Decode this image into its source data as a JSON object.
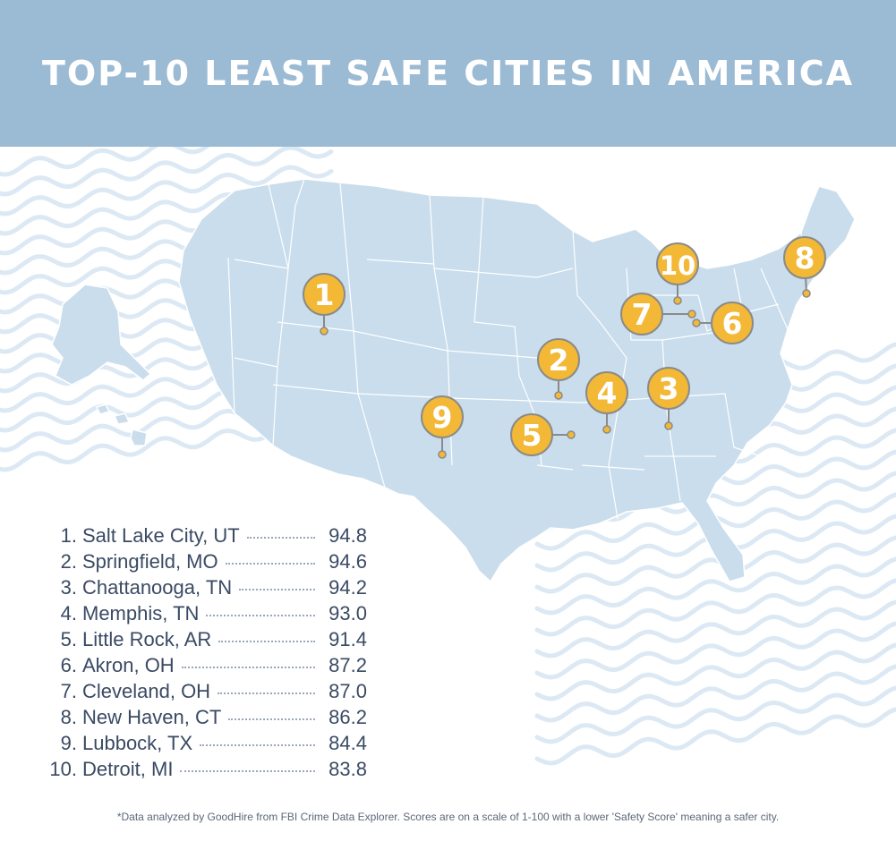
{
  "title": "TOP-10 LEAST SAFE CITIES IN AMERICA",
  "colors": {
    "banner": "#9bbad3",
    "land": "#c9ddec",
    "state_border": "#ffffff",
    "marker_fill": "#f2b836",
    "marker_stroke": "#8a8a8a",
    "waves": "#dce9f4",
    "text": "#3a4a63"
  },
  "cities": [
    {
      "rank": "1.",
      "badge": "1",
      "name": "Salt Lake City, UT",
      "score": "94.8"
    },
    {
      "rank": "2.",
      "badge": "2",
      "name": "Springfield, MO",
      "score": "94.6"
    },
    {
      "rank": "3.",
      "badge": "3",
      "name": "Chattanooga, TN",
      "score": "94.2"
    },
    {
      "rank": "4.",
      "badge": "4",
      "name": "Memphis, TN",
      "score": "93.0"
    },
    {
      "rank": "5.",
      "badge": "5",
      "name": "Little Rock, AR",
      "score": "91.4"
    },
    {
      "rank": "6.",
      "badge": "6",
      "name": "Akron, OH",
      "score": "87.2"
    },
    {
      "rank": "7.",
      "badge": "7",
      "name": "Cleveland, OH",
      "score": "87.0"
    },
    {
      "rank": "8.",
      "badge": "8",
      "name": "New Haven, CT",
      "score": "86.2"
    },
    {
      "rank": "9.",
      "badge": "9",
      "name": "Lubbock, TX",
      "score": "84.4"
    },
    {
      "rank": "10.",
      "badge": "10",
      "name": "Detroit, MI",
      "score": "83.8"
    }
  ],
  "footnote": "*Data analyzed by GoodHire from FBI Crime Data Explorer. Scores are on a scale of 1-100 with a lower 'Safety Score' meaning a safer city."
}
